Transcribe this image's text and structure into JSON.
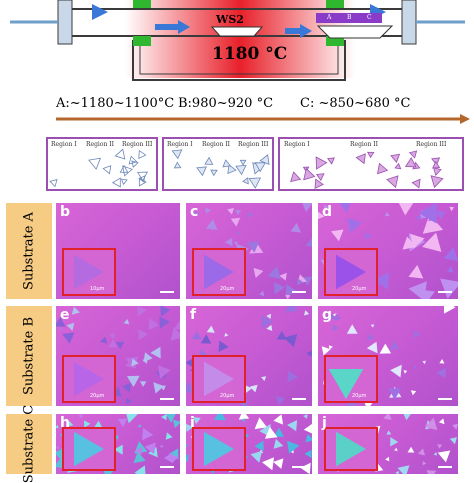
{
  "furnace": {
    "material_label": "WS2",
    "temperature_label": "1180 °C",
    "substrate_letters": [
      "A",
      "B",
      "C"
    ],
    "colors": {
      "hot": "#e8202a",
      "tube_line": "#3a3a3a",
      "clamp": "#2fb82f",
      "arrow": "#3a78d8",
      "boat": "#8a3cc8",
      "flange": "#6f9fc8"
    }
  },
  "temperature_axis": {
    "ranges": [
      "A:~1180~1100°C",
      "B:980~920 °C",
      "C: ~850~680 °C"
    ],
    "arrow_color": "#b5662b"
  },
  "schematics": [
    {
      "regions": [
        "Region I",
        "Region II",
        "Region III"
      ]
    },
    {
      "regions": [
        "Region I",
        "Region II",
        "Region III"
      ]
    },
    {
      "regions": [
        "Region I",
        "Region II",
        "Region III"
      ]
    }
  ],
  "rows": [
    {
      "label": "Substrate A",
      "panels": [
        {
          "letter": "b",
          "scale": "10μm"
        },
        {
          "letter": "c",
          "scale": "20μm"
        },
        {
          "letter": "d",
          "scale": "20μm"
        }
      ]
    },
    {
      "label": "Substrate B",
      "panels": [
        {
          "letter": "e",
          "scale": "20μm"
        },
        {
          "letter": "f",
          "scale": "20μm"
        },
        {
          "letter": "g",
          "scale": "20μm"
        }
      ]
    },
    {
      "label": "Substrate C",
      "panels": [
        {
          "letter": "h",
          "scale": ""
        },
        {
          "letter": "i",
          "scale": ""
        },
        {
          "letter": "j",
          "scale": ""
        }
      ]
    }
  ]
}
